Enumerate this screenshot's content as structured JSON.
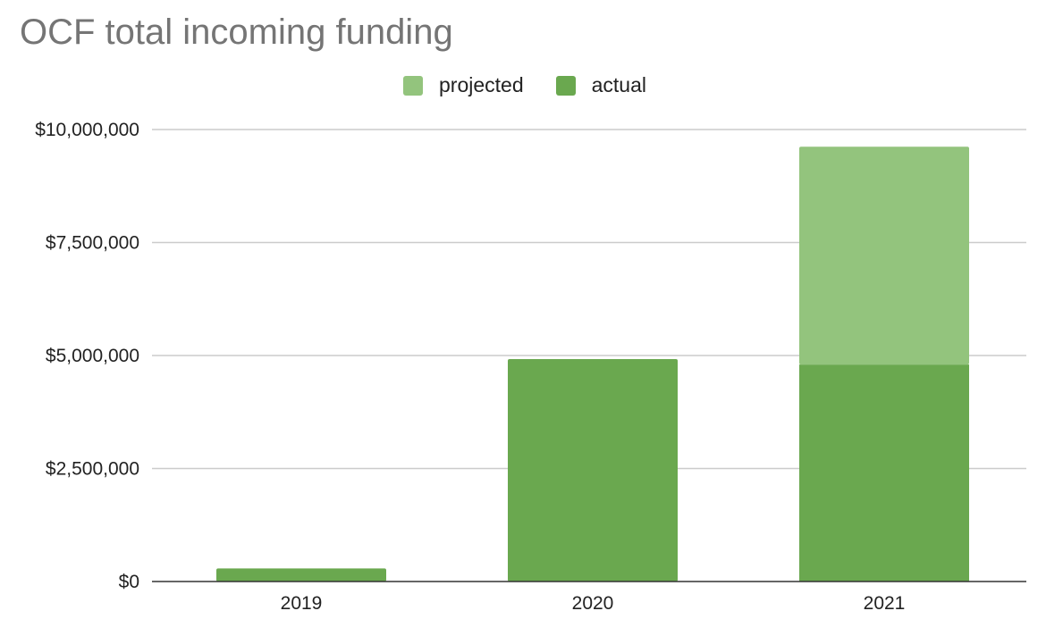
{
  "chart_data": {
    "type": "bar",
    "stacked": true,
    "title": "OCF total incoming funding",
    "xlabel": "",
    "ylabel": "",
    "categories": [
      "2019",
      "2020",
      "2021"
    ],
    "series": [
      {
        "name": "actual",
        "values": [
          290000,
          4920000,
          4800000
        ],
        "color": "#6aa84f"
      },
      {
        "name": "projected",
        "values": [
          0,
          0,
          4820000
        ],
        "color": "#93c47d"
      }
    ],
    "legend_order": [
      "projected",
      "actual"
    ],
    "ylim": [
      0,
      10000000
    ],
    "yticks": [
      0,
      2500000,
      5000000,
      7500000,
      10000000
    ],
    "ytick_labels": [
      "$0",
      "$2,500,000",
      "$5,000,000",
      "$7,500,000",
      "$10,000,000"
    ],
    "grid": true,
    "legend_position": "top"
  }
}
